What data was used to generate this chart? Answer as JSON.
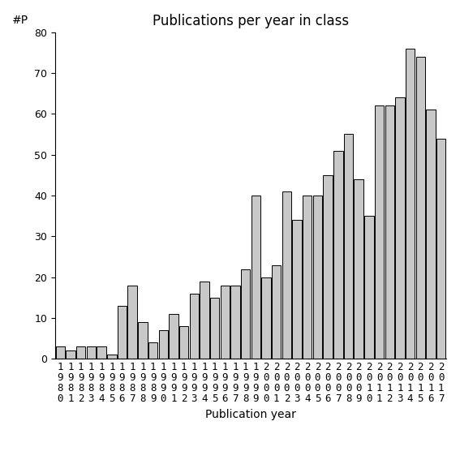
{
  "title": "Publications per year in class",
  "xlabel": "Publication year",
  "ylabel": "#P",
  "years": [
    1980,
    1981,
    1982,
    1983,
    1984,
    1985,
    1986,
    1987,
    1988,
    1989,
    1990,
    1991,
    1992,
    1993,
    1994,
    1995,
    1996,
    1997,
    1998,
    1999,
    2000,
    2001,
    2002,
    2003,
    2004,
    2005,
    2006,
    2007,
    2008,
    2009,
    2010,
    2011,
    2012,
    2013,
    2014,
    2015,
    2016,
    2017
  ],
  "values": [
    3,
    2,
    3,
    3,
    3,
    1,
    13,
    18,
    9,
    4,
    7,
    11,
    8,
    16,
    19,
    15,
    18,
    18,
    22,
    40,
    20,
    23,
    41,
    34,
    40,
    40,
    45,
    51,
    55,
    44,
    35,
    62,
    62,
    64,
    76,
    74,
    61,
    54
  ],
  "ylim": [
    0,
    80
  ],
  "yticks": [
    0,
    10,
    20,
    30,
    40,
    50,
    60,
    70,
    80
  ],
  "bar_color": "#c8c8c8",
  "bar_edgecolor": "#000000",
  "bg_color": "#ffffff",
  "title_fontsize": 12,
  "label_fontsize": 10,
  "tick_fontsize": 9
}
